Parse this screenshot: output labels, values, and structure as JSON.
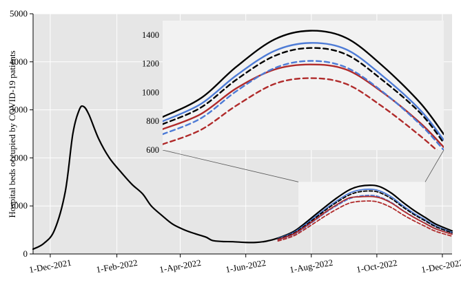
{
  "chart_data": {
    "type": "line",
    "title": "",
    "xlabel": "",
    "ylabel": "Hospital beds occupied by COVID-19 patients",
    "x_tick_labels": [
      "1-Dec-2021",
      "1-Feb-2022",
      "1-Apr-2022",
      "1-Jun-2022",
      "1-Aug-2022",
      "1-Oct-2022",
      "1-Dec-2022"
    ],
    "y_tick_labels": [
      "0",
      "1000",
      "2000",
      "3000",
      "4000",
      "5000"
    ],
    "xlim": [
      "2021-11-15",
      "2022-12-10"
    ],
    "ylim": [
      0,
      5000
    ],
    "grid": true,
    "legend": "none",
    "colors": {
      "plot_background": "#e6e6e6",
      "grid": "#ffffff",
      "black": "#000000",
      "blue": "#4d7bd6",
      "red": "#b02a2a",
      "inset_background": "#f2f2f2",
      "zoom_box": "#f4f4f4"
    },
    "zoom_region": {
      "x": [
        "2022-07-20",
        "2022-11-15"
      ],
      "y": [
        600,
        1500
      ]
    },
    "series": [
      {
        "color": "#000000",
        "style": "solid",
        "points": [
          [
            "2021-11-15",
            100
          ],
          [
            "2021-11-25",
            220
          ],
          [
            "2021-12-05",
            500
          ],
          [
            "2021-12-15",
            1300
          ],
          [
            "2021-12-22",
            2500
          ],
          [
            "2021-12-28",
            3000
          ],
          [
            "2022-01-01",
            3070
          ],
          [
            "2022-01-06",
            2900
          ],
          [
            "2022-01-15",
            2400
          ],
          [
            "2022-01-25",
            2000
          ],
          [
            "2022-02-05",
            1700
          ],
          [
            "2022-02-15",
            1450
          ],
          [
            "2022-02-25",
            1250
          ],
          [
            "2022-03-05",
            1000
          ],
          [
            "2022-03-15",
            800
          ],
          [
            "2022-03-25",
            620
          ],
          [
            "2022-04-05",
            500
          ],
          [
            "2022-04-15",
            420
          ],
          [
            "2022-04-25",
            350
          ],
          [
            "2022-05-01",
            280
          ],
          [
            "2022-05-10",
            260
          ],
          [
            "2022-05-20",
            255
          ],
          [
            "2022-06-01",
            240
          ],
          [
            "2022-06-10",
            240
          ],
          [
            "2022-06-20",
            265
          ],
          [
            "2022-07-01",
            330
          ],
          [
            "2022-07-15",
            460
          ],
          [
            "2022-07-25",
            620
          ],
          [
            "2022-08-05",
            820
          ],
          [
            "2022-08-15",
            1000
          ],
          [
            "2022-08-25",
            1170
          ],
          [
            "2022-09-05",
            1330
          ],
          [
            "2022-09-15",
            1410
          ],
          [
            "2022-09-27",
            1430
          ],
          [
            "2022-10-05",
            1390
          ],
          [
            "2022-10-15",
            1260
          ],
          [
            "2022-10-25",
            1080
          ],
          [
            "2022-11-05",
            900
          ],
          [
            "2022-11-15",
            760
          ],
          [
            "2022-11-25",
            620
          ],
          [
            "2022-12-10",
            480
          ]
        ]
      },
      {
        "color": "#4d7bd6",
        "style": "solid",
        "points": [
          [
            "2022-07-01",
            320
          ],
          [
            "2022-07-15",
            440
          ],
          [
            "2022-07-25",
            590
          ],
          [
            "2022-08-05",
            780
          ],
          [
            "2022-08-15",
            950
          ],
          [
            "2022-08-25",
            1110
          ],
          [
            "2022-09-05",
            1260
          ],
          [
            "2022-09-15",
            1330
          ],
          [
            "2022-09-27",
            1345
          ],
          [
            "2022-10-05",
            1300
          ],
          [
            "2022-10-15",
            1180
          ],
          [
            "2022-10-25",
            1010
          ],
          [
            "2022-11-05",
            840
          ],
          [
            "2022-11-15",
            710
          ],
          [
            "2022-11-25",
            580
          ],
          [
            "2022-12-10",
            450
          ]
        ]
      },
      {
        "color": "#000000",
        "style": "dashed",
        "points": [
          [
            "2022-07-01",
            310
          ],
          [
            "2022-07-15",
            425
          ],
          [
            "2022-07-25",
            570
          ],
          [
            "2022-08-05",
            755
          ],
          [
            "2022-08-15",
            925
          ],
          [
            "2022-08-25",
            1080
          ],
          [
            "2022-09-05",
            1225
          ],
          [
            "2022-09-15",
            1295
          ],
          [
            "2022-09-27",
            1310
          ],
          [
            "2022-10-05",
            1265
          ],
          [
            "2022-10-15",
            1145
          ],
          [
            "2022-10-25",
            980
          ],
          [
            "2022-11-05",
            815
          ],
          [
            "2022-11-15",
            690
          ],
          [
            "2022-11-25",
            565
          ],
          [
            "2022-12-10",
            440
          ]
        ]
      },
      {
        "color": "#4d7bd6",
        "style": "dashed",
        "points": [
          [
            "2022-07-01",
            290
          ],
          [
            "2022-07-15",
            400
          ],
          [
            "2022-07-25",
            535
          ],
          [
            "2022-08-05",
            710
          ],
          [
            "2022-08-15",
            870
          ],
          [
            "2022-08-25",
            1010
          ],
          [
            "2022-09-05",
            1145
          ],
          [
            "2022-09-15",
            1205
          ],
          [
            "2022-09-27",
            1220
          ],
          [
            "2022-10-05",
            1175
          ],
          [
            "2022-10-15",
            1065
          ],
          [
            "2022-10-25",
            910
          ],
          [
            "2022-11-05",
            760
          ],
          [
            "2022-11-15",
            640
          ],
          [
            "2022-11-25",
            525
          ],
          [
            "2022-12-10",
            415
          ]
        ]
      },
      {
        "color": "#b02a2a",
        "style": "solid",
        "points": [
          [
            "2022-07-01",
            300
          ],
          [
            "2022-07-15",
            410
          ],
          [
            "2022-07-25",
            550
          ],
          [
            "2022-08-05",
            725
          ],
          [
            "2022-08-15",
            885
          ],
          [
            "2022-08-25",
            1030
          ],
          [
            "2022-09-05",
            1165
          ],
          [
            "2022-09-15",
            1190
          ],
          [
            "2022-09-27",
            1195
          ],
          [
            "2022-10-05",
            1160
          ],
          [
            "2022-10-15",
            1055
          ],
          [
            "2022-10-25",
            905
          ],
          [
            "2022-11-05",
            755
          ],
          [
            "2022-11-15",
            635
          ],
          [
            "2022-11-25",
            520
          ],
          [
            "2022-12-10",
            410
          ]
        ]
      },
      {
        "color": "#b02a2a",
        "style": "dashed",
        "points": [
          [
            "2022-07-01",
            270
          ],
          [
            "2022-07-15",
            370
          ],
          [
            "2022-07-25",
            500
          ],
          [
            "2022-08-05",
            660
          ],
          [
            "2022-08-15",
            805
          ],
          [
            "2022-08-25",
            935
          ],
          [
            "2022-09-05",
            1055
          ],
          [
            "2022-09-15",
            1095
          ],
          [
            "2022-09-27",
            1100
          ],
          [
            "2022-10-05",
            1060
          ],
          [
            "2022-10-15",
            960
          ],
          [
            "2022-10-25",
            820
          ],
          [
            "2022-11-05",
            685
          ],
          [
            "2022-11-15",
            575
          ],
          [
            "2022-11-25",
            470
          ],
          [
            "2022-12-10",
            370
          ]
        ]
      }
    ],
    "inset": {
      "x_range": [
        "2022-07-20",
        "2022-11-15"
      ],
      "y_range": [
        600,
        1500
      ],
      "y_tick_labels": [
        "600",
        "800",
        "1000",
        "1200",
        "1400"
      ],
      "grid": false,
      "series": [
        {
          "color": "#000000",
          "style": "solid",
          "points": [
            [
              "2022-07-20",
              830
            ],
            [
              "2022-08-05",
              960
            ],
            [
              "2022-08-20",
              1180
            ],
            [
              "2022-09-05",
              1370
            ],
            [
              "2022-09-20",
              1430
            ],
            [
              "2022-10-05",
              1380
            ],
            [
              "2022-10-20",
              1190
            ],
            [
              "2022-11-05",
              930
            ],
            [
              "2022-11-15",
              710
            ]
          ]
        },
        {
          "color": "#4d7bd6",
          "style": "solid",
          "points": [
            [
              "2022-07-20",
              800
            ],
            [
              "2022-08-05",
              920
            ],
            [
              "2022-08-20",
              1120
            ],
            [
              "2022-09-05",
              1290
            ],
            [
              "2022-09-20",
              1345
            ],
            [
              "2022-10-05",
              1300
            ],
            [
              "2022-10-20",
              1120
            ],
            [
              "2022-11-05",
              880
            ],
            [
              "2022-11-15",
              670
            ]
          ]
        },
        {
          "color": "#000000",
          "style": "dashed",
          "points": [
            [
              "2022-07-20",
              780
            ],
            [
              "2022-08-05",
              895
            ],
            [
              "2022-08-20",
              1090
            ],
            [
              "2022-09-05",
              1255
            ],
            [
              "2022-09-20",
              1310
            ],
            [
              "2022-10-05",
              1265
            ],
            [
              "2022-10-20",
              1090
            ],
            [
              "2022-11-05",
              860
            ],
            [
              "2022-11-15",
              650
            ]
          ]
        },
        {
          "color": "#b02a2a",
          "style": "solid",
          "points": [
            [
              "2022-07-20",
              745
            ],
            [
              "2022-08-05",
              850
            ],
            [
              "2022-08-20",
              1030
            ],
            [
              "2022-09-05",
              1160
            ],
            [
              "2022-09-20",
              1195
            ],
            [
              "2022-10-05",
              1160
            ],
            [
              "2022-10-20",
              1005
            ],
            [
              "2022-11-05",
              790
            ],
            [
              "2022-11-15",
              620
            ]
          ]
        },
        {
          "color": "#4d7bd6",
          "style": "dashed",
          "points": [
            [
              "2022-07-20",
              710
            ],
            [
              "2022-08-05",
              820
            ],
            [
              "2022-08-20",
              1010
            ],
            [
              "2022-09-05",
              1170
            ],
            [
              "2022-09-20",
              1220
            ],
            [
              "2022-10-05",
              1175
            ],
            [
              "2022-10-20",
              1010
            ],
            [
              "2022-11-05",
              780
            ],
            [
              "2022-11-15",
              600
            ]
          ]
        },
        {
          "color": "#b02a2a",
          "style": "dashed",
          "points": [
            [
              "2022-07-20",
              640
            ],
            [
              "2022-08-05",
              740
            ],
            [
              "2022-08-20",
              910
            ],
            [
              "2022-09-05",
              1060
            ],
            [
              "2022-09-20",
              1100
            ],
            [
              "2022-10-05",
              1060
            ],
            [
              "2022-10-20",
              905
            ],
            [
              "2022-11-05",
              700
            ],
            [
              "2022-11-15",
              555
            ]
          ]
        }
      ]
    }
  }
}
